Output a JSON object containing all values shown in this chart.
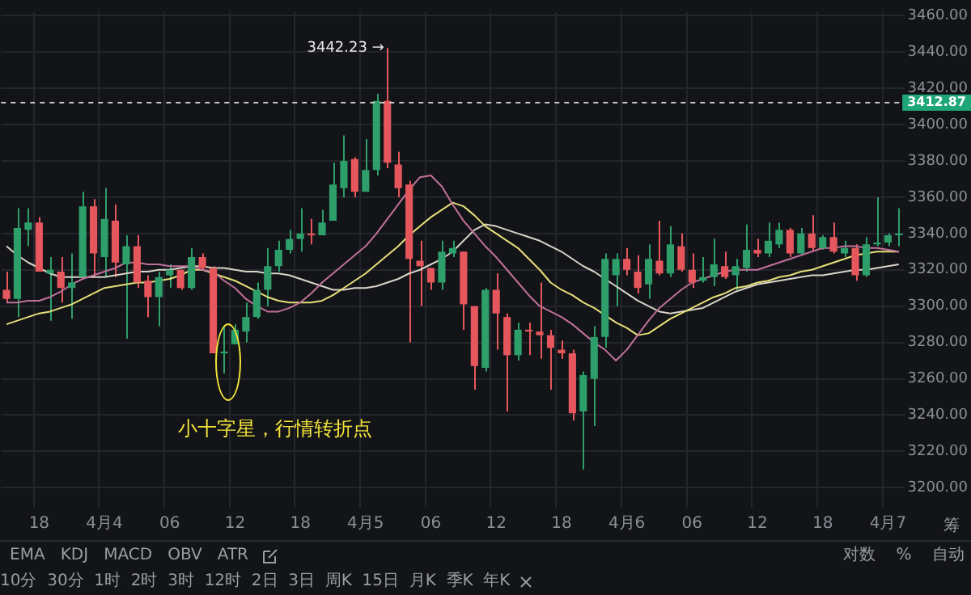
{
  "chart_data": {
    "type": "candlestick",
    "categories": [
      null,
      null,
      null,
      "18",
      null,
      null,
      null,
      null,
      null,
      "4月4",
      null,
      null,
      null,
      null,
      null,
      "06",
      null,
      null,
      null,
      null,
      null,
      "12",
      null,
      null,
      null,
      null,
      null,
      "18",
      null,
      null,
      null,
      null,
      null,
      "4月5",
      null,
      null,
      null,
      null,
      null,
      "06",
      null,
      null,
      null,
      null,
      null,
      "12",
      null,
      null,
      null,
      null,
      null,
      "18",
      null,
      null,
      null,
      null,
      null,
      "4月6",
      null,
      null,
      null,
      null,
      null,
      "06",
      null,
      null,
      null,
      null,
      null,
      "12",
      null,
      null,
      null,
      null,
      null,
      "18",
      null,
      null,
      null,
      null,
      null,
      "4月7",
      null
    ],
    "ohlc": [
      [
        3309,
        3319,
        3302,
        3304
      ],
      [
        3304,
        3354,
        3294,
        3343
      ],
      [
        3342,
        3354,
        3333,
        3346
      ],
      [
        3346,
        3349,
        3319,
        3319
      ],
      [
        3318,
        3327,
        3292,
        3320
      ],
      [
        3319,
        3327,
        3302,
        3310
      ],
      [
        3310,
        3329,
        3293,
        3313
      ],
      [
        3316,
        3363,
        3316,
        3355
      ],
      [
        3355,
        3359,
        3316,
        3329
      ],
      [
        3327,
        3365,
        3316,
        3348
      ],
      [
        3347,
        3356,
        3316,
        3324
      ],
      [
        3323,
        3339,
        3282,
        3333
      ],
      [
        3333,
        3339,
        3310,
        3313
      ],
      [
        3314,
        3317,
        3294,
        3305
      ],
      [
        3305,
        3319,
        3289,
        3316
      ],
      [
        3317,
        3323,
        3310,
        3320
      ],
      [
        3320,
        3320,
        3309,
        3310
      ],
      [
        3310,
        3332,
        3309,
        3327
      ],
      [
        3327,
        3329,
        3320,
        3321
      ],
      [
        3321,
        3322,
        3274,
        3274
      ],
      [
        3274,
        3289,
        3263,
        3275
      ],
      [
        3279,
        3290,
        3279,
        3287
      ],
      [
        3286,
        3302,
        3280,
        3294
      ],
      [
        3294,
        3313,
        3293,
        3309
      ],
      [
        3309,
        3332,
        3300,
        3322
      ],
      [
        3322,
        3336,
        3319,
        3331
      ],
      [
        3331,
        3342,
        3329,
        3337
      ],
      [
        3337,
        3354,
        3330,
        3340
      ],
      [
        3340,
        3348,
        3334,
        3339
      ],
      [
        3339,
        3353,
        3339,
        3346
      ],
      [
        3347,
        3379,
        3347,
        3367
      ],
      [
        3365,
        3394,
        3360,
        3380
      ],
      [
        3381,
        3382,
        3360,
        3363
      ],
      [
        3363,
        3392,
        3363,
        3375
      ],
      [
        3375,
        3417,
        3372,
        3413
      ],
      [
        3413,
        3442.23,
        3376,
        3379
      ],
      [
        3378,
        3385,
        3360,
        3365
      ],
      [
        3367,
        3369,
        3280,
        3326
      ],
      [
        3325,
        3336,
        3300,
        3322
      ],
      [
        3321,
        3321,
        3309,
        3313
      ],
      [
        3313,
        3336,
        3309,
        3330
      ],
      [
        3329,
        3336,
        3327,
        3332
      ],
      [
        3330,
        3330,
        3287,
        3301
      ],
      [
        3300,
        3300,
        3254,
        3267
      ],
      [
        3266,
        3310,
        3264,
        3309
      ],
      [
        3309,
        3318,
        3276,
        3296
      ],
      [
        3294,
        3296,
        3242,
        3273
      ],
      [
        3273,
        3291,
        3270,
        3287
      ],
      [
        3287,
        3291,
        3273,
        3286
      ],
      [
        3286,
        3313,
        3271,
        3284
      ],
      [
        3284,
        3287,
        3254,
        3277
      ],
      [
        3276,
        3281,
        3271,
        3274
      ],
      [
        3274,
        3276,
        3237,
        3241
      ],
      [
        3242,
        3264,
        3210,
        3262
      ],
      [
        3260,
        3289,
        3234,
        3283
      ],
      [
        3283,
        3329,
        3277,
        3326
      ],
      [
        3317,
        3329,
        3300,
        3326
      ],
      [
        3326,
        3332,
        3317,
        3320
      ],
      [
        3319,
        3328,
        3307,
        3310
      ],
      [
        3312,
        3334,
        3304,
        3326
      ],
      [
        3325,
        3347,
        3317,
        3318
      ],
      [
        3318,
        3344,
        3316,
        3334
      ],
      [
        3333,
        3340,
        3319,
        3320
      ],
      [
        3320,
        3329,
        3310,
        3313
      ],
      [
        3314,
        3327,
        3313,
        3316
      ],
      [
        3316,
        3337,
        3311,
        3323
      ],
      [
        3322,
        3330,
        3315,
        3316
      ],
      [
        3317,
        3326,
        3309,
        3322
      ],
      [
        3321,
        3345,
        3319,
        3331
      ],
      [
        3331,
        3337,
        3327,
        3329
      ],
      [
        3329,
        3346,
        3327,
        3336
      ],
      [
        3334,
        3346,
        3332,
        3342
      ],
      [
        3342,
        3343,
        3327,
        3329
      ],
      [
        3329,
        3343,
        3328,
        3340
      ],
      [
        3340,
        3350,
        3330,
        3332
      ],
      [
        3332,
        3339,
        3331,
        3338
      ],
      [
        3338,
        3346,
        3329,
        3330
      ],
      [
        3329,
        3336,
        3327,
        3332
      ],
      [
        3332,
        3334,
        3314,
        3317
      ],
      [
        3317,
        3338,
        3316,
        3334
      ],
      [
        3334,
        3360,
        3333,
        3335
      ],
      [
        3335,
        3340,
        3333,
        3339
      ],
      [
        3339,
        3354,
        3333,
        3340
      ]
    ],
    "colors": [
      "#e5575c",
      "#2e9e6b",
      "#2e9e6b",
      "#e5575c",
      "#2e9e6b",
      "#e5575c",
      "#2e9e6b",
      "#2e9e6b",
      "#e5575c",
      "#2e9e6b",
      "#e5575c",
      "#2e9e6b",
      "#e5575c",
      "#e5575c",
      "#2e9e6b",
      "#2e9e6b",
      "#e5575c",
      "#2e9e6b",
      "#e5575c",
      "#e5575c",
      "#2e9e6b",
      "#2e9e6b",
      "#2e9e6b",
      "#2e9e6b",
      "#2e9e6b",
      "#2e9e6b",
      "#2e9e6b",
      "#2e9e6b",
      "#e5575c",
      "#2e9e6b",
      "#2e9e6b",
      "#2e9e6b",
      "#e5575c",
      "#2e9e6b",
      "#2e9e6b",
      "#e5575c",
      "#e5575c",
      "#e5575c",
      "#e5575c",
      "#e5575c",
      "#2e9e6b",
      "#2e9e6b",
      "#e5575c",
      "#e5575c",
      "#2e9e6b",
      "#e5575c",
      "#e5575c",
      "#2e9e6b",
      "#e5575c",
      "#e5575c",
      "#e5575c",
      "#e5575c",
      "#e5575c",
      "#2e9e6b",
      "#2e9e6b",
      "#2e9e6b",
      "#2e9e6b",
      "#e5575c",
      "#e5575c",
      "#2e9e6b",
      "#e5575c",
      "#2e9e6b",
      "#e5575c",
      "#e5575c",
      "#2e9e6b",
      "#2e9e6b",
      "#e5575c",
      "#2e9e6b",
      "#2e9e6b",
      "#e5575c",
      "#2e9e6b",
      "#2e9e6b",
      "#e5575c",
      "#2e9e6b",
      "#e5575c",
      "#2e9e6b",
      "#e5575c",
      "#2e9e6b",
      "#e5575c",
      "#2e9e6b",
      "#2e9e6b",
      "#2e9e6b",
      "#2e9e6b"
    ],
    "series": [
      {
        "type": "line",
        "color": "#c0709a",
        "values": [
          3302,
          3302,
          3303,
          3303,
          3305,
          3308,
          3312,
          3315,
          3317,
          3319,
          3321,
          3324,
          3324,
          3323,
          3323,
          3322,
          3322,
          3322,
          3320,
          3319,
          3314,
          3310,
          3304,
          3300,
          3297,
          3297,
          3299,
          3302,
          3307,
          3313,
          3318,
          3323,
          3328,
          3333,
          3340,
          3348,
          3356,
          3364,
          3371,
          3372,
          3366,
          3356,
          3347,
          3340,
          3333,
          3327,
          3320,
          3313,
          3306,
          3300,
          3297,
          3294,
          3290,
          3285,
          3280,
          3276,
          3270,
          3276,
          3284,
          3292,
          3299,
          3304,
          3309,
          3313,
          3315,
          3317,
          3319,
          3320,
          3320,
          3320,
          3322,
          3324,
          3326,
          3328,
          3330,
          3332,
          3332,
          3333,
          3333,
          3332,
          3332,
          3331,
          3330
        ]
      },
      {
        "type": "line",
        "color": "#e6df7a",
        "values": [
          3290,
          3292,
          3294,
          3296,
          3297,
          3299,
          3301,
          3304,
          3307,
          3310,
          3311,
          3312,
          3313,
          3313,
          3314,
          3315,
          3317,
          3320,
          3320,
          3318,
          3316,
          3314,
          3311,
          3308,
          3305,
          3303,
          3302,
          3302,
          3302,
          3303,
          3306,
          3310,
          3314,
          3318,
          3323,
          3328,
          3333,
          3339,
          3344,
          3349,
          3353,
          3357,
          3355,
          3350,
          3344,
          3340,
          3336,
          3332,
          3326,
          3320,
          3313,
          3309,
          3306,
          3302,
          3299,
          3295,
          3291,
          3288,
          3284,
          3285,
          3289,
          3293,
          3296,
          3299,
          3302,
          3305,
          3307,
          3310,
          3311,
          3313,
          3314,
          3316,
          3317,
          3319,
          3320,
          3322,
          3324,
          3326,
          3328,
          3329,
          3330,
          3330,
          3330
        ]
      },
      {
        "type": "line",
        "color": "#d9d4c8",
        "values": [
          3333,
          3328,
          3324,
          3321,
          3318,
          3316,
          3316,
          3316,
          3316,
          3316,
          3317,
          3318,
          3319,
          3319,
          3320,
          3320,
          3321,
          3322,
          3322,
          3321,
          3321,
          3320,
          3319,
          3319,
          3318,
          3318,
          3317,
          3315,
          3313,
          3311,
          3309,
          3309,
          3310,
          3310,
          3311,
          3313,
          3315,
          3318,
          3320,
          3323,
          3326,
          3330,
          3336,
          3342,
          3345,
          3344,
          3342,
          3340,
          3338,
          3336,
          3333,
          3330,
          3326,
          3322,
          3319,
          3315,
          3311,
          3307,
          3303,
          3300,
          3297,
          3296,
          3297,
          3298,
          3299,
          3302,
          3305,
          3308,
          3310,
          3312,
          3313,
          3314,
          3315,
          3316,
          3317,
          3317,
          3318,
          3319,
          3320,
          3320,
          3321,
          3322,
          3323
        ]
      }
    ],
    "ylim": [
      3189,
      3462
    ],
    "yticks": [
      {
        "value": 3200,
        "label": "3200.00"
      },
      {
        "value": 3220,
        "label": "3220.00"
      },
      {
        "value": 3240,
        "label": "3240.00"
      },
      {
        "value": 3260,
        "label": "3260.00"
      },
      {
        "value": 3280,
        "label": "3280.00"
      },
      {
        "value": 3300,
        "label": "3300.00"
      },
      {
        "value": 3320,
        "label": "3320.00"
      },
      {
        "value": 3340,
        "label": "3340.00"
      },
      {
        "value": 3360,
        "label": "3360.00"
      },
      {
        "value": 3380,
        "label": "3380.00"
      },
      {
        "value": 3400,
        "label": "3400.00"
      },
      {
        "value": 3420,
        "label": "3420.00"
      },
      {
        "value": 3440,
        "label": "3440.00"
      },
      {
        "value": 3460,
        "label": "3460.00"
      }
    ],
    "ref_lines": [
      {
        "axis": "y",
        "value": 3412.87,
        "label": "3412.87",
        "line_style": "dashed"
      }
    ],
    "annotations": [
      "3442.23 →",
      "小十字星，行情转折点",
      "EMA   KDJ   MACD   OBV   ATR",
      "对数    %    自动",
      "10分  30分  1时  2时  3时  12时  2日  3日  周K  15日  月K  季K  年K",
      "筹"
    ],
    "grid": true
  }
}
